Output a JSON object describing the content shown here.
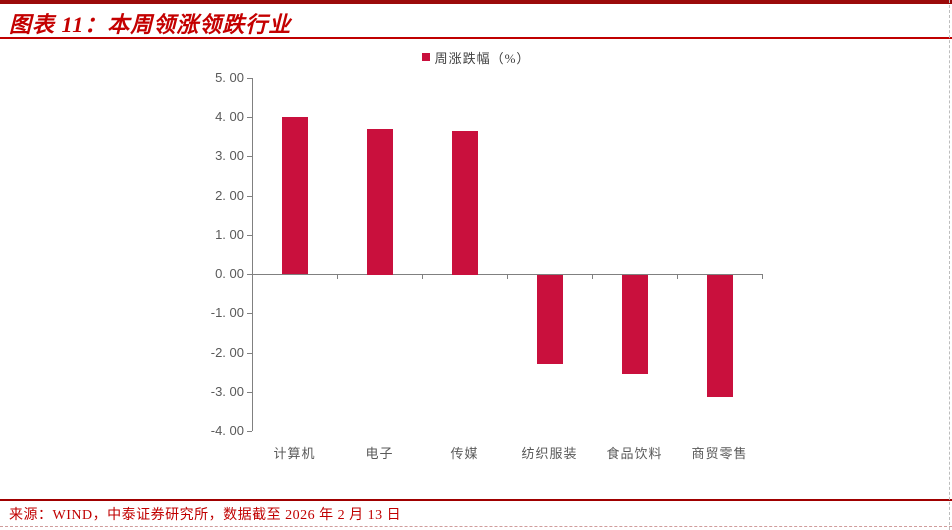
{
  "figure": {
    "title": "图表 11：本周领涨领跌行业",
    "source_note": "来源：WIND，中泰证券研究所，数据截至 2026 年 2 月 13 日"
  },
  "chart_data": {
    "type": "bar",
    "title": "本周领涨领跌行业",
    "legend": "周涨跌幅（%）",
    "legend_position": "top-center",
    "categories": [
      "计算机",
      "电子",
      "传媒",
      "纺织服装",
      "食品饮料",
      "商贸零售"
    ],
    "values": [
      4.01,
      3.71,
      3.66,
      -2.26,
      -2.52,
      -3.1
    ],
    "xlabel": "",
    "ylabel": "",
    "ylim": [
      -4,
      5
    ],
    "ytick_step": 1,
    "ytick_labels": [
      "5. 00",
      "4. 00",
      "3. 00",
      "2. 00",
      "1. 00",
      "0. 00",
      "-1. 00",
      "-2. 00",
      "-3. 00",
      "-4. 00"
    ],
    "grid": false,
    "bar_color": "#c9103d",
    "axis_color": "#808080",
    "tick_label_color": "#595959"
  },
  "colors": {
    "title_red": "#c40000",
    "rule_dark_red": "#9b0a0a",
    "footer_text_red": "#c00000"
  }
}
